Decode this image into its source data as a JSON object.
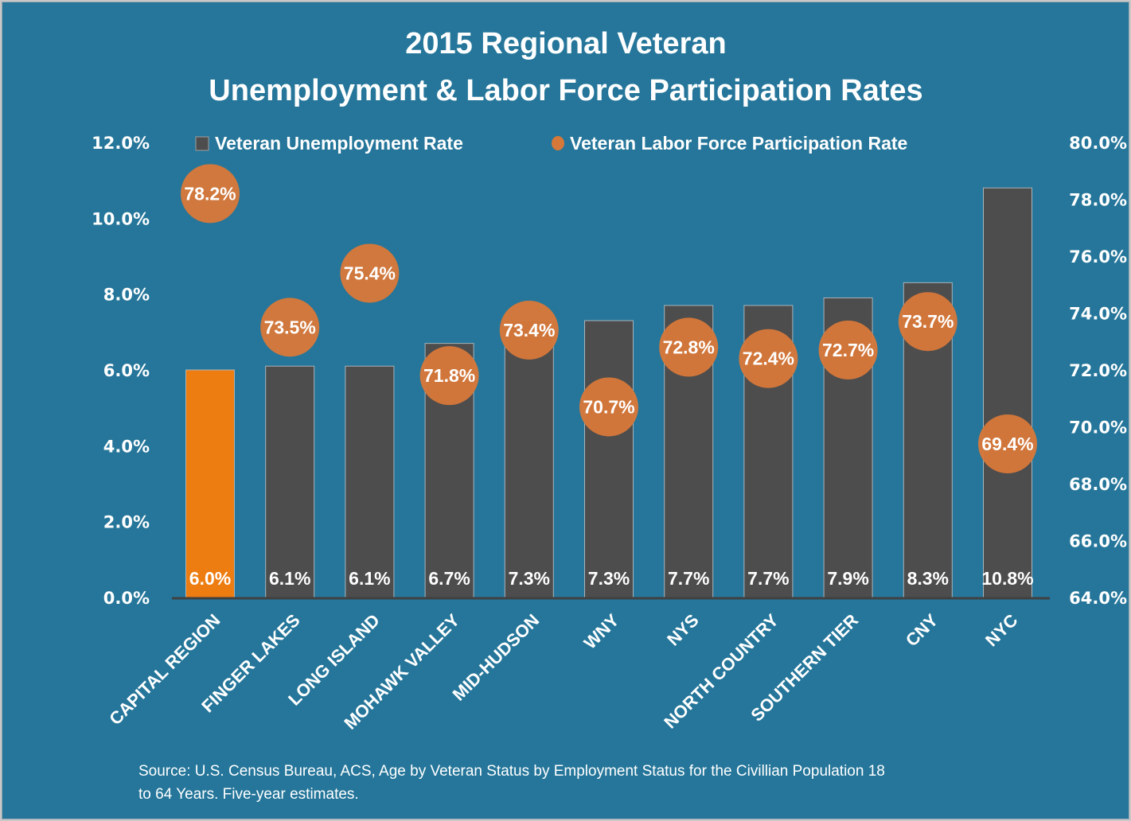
{
  "chart_data": {
    "type": "bar",
    "title": [
      "2015 Regional Veteran",
      "Unemployment & Labor Force Participation Rates"
    ],
    "categories": [
      "CAPITAL REGION",
      "FINGER LAKES",
      "LONG ISLAND",
      "MOHAWK VALLEY",
      "MID-HUDSON",
      "WNY",
      "NYS",
      "NORTH COUNTRY",
      "SOUTHERN TIER",
      "CNY",
      "NYC"
    ],
    "series": [
      {
        "name": "Veteran Unemployment Rate",
        "type": "bar",
        "axis": "left",
        "values": [
          6.0,
          6.1,
          6.1,
          6.7,
          7.3,
          7.3,
          7.7,
          7.7,
          7.9,
          8.3,
          10.8
        ],
        "labels": [
          "6.0%",
          "6.1%",
          "6.1%",
          "6.7%",
          "7.3%",
          "7.3%",
          "7.7%",
          "7.7%",
          "7.9%",
          "8.3%",
          "10.8%"
        ],
        "color": "#4d4d4d",
        "highlight_index": 0,
        "highlight_color": "#ee7d11"
      },
      {
        "name": "Veteran Labor Force Participation Rate",
        "type": "scatter",
        "axis": "right",
        "values": [
          78.2,
          73.5,
          75.4,
          71.8,
          73.4,
          70.7,
          72.8,
          72.4,
          72.7,
          73.7,
          69.4
        ],
        "labels": [
          "78.2%",
          "73.5%",
          "75.4%",
          "71.8%",
          "73.4%",
          "70.7%",
          "72.8%",
          "72.4%",
          "72.7%",
          "73.7%",
          "69.4%"
        ],
        "color": "#d6783a"
      }
    ],
    "xlabel": "",
    "ylabel": "",
    "ylim": [
      0,
      12
    ],
    "yticks": [
      "0.0%",
      "2.0%",
      "4.0%",
      "6.0%",
      "8.0%",
      "10.0%",
      "12.0%"
    ],
    "y2lim": [
      64,
      80
    ],
    "y2ticks": [
      "64.0%",
      "66.0%",
      "68.0%",
      "70.0%",
      "72.0%",
      "74.0%",
      "76.0%",
      "78.0%",
      "80.0%"
    ],
    "grid": false,
    "legend_position": "top-center",
    "background": "#25769a"
  },
  "source": {
    "line1": "Source: U.S. Census Bureau, ACS, Age  by Veteran Status by Employment Status for the Civillian Population  18",
    "line2": "to 64 Years. Five-year estimates."
  }
}
